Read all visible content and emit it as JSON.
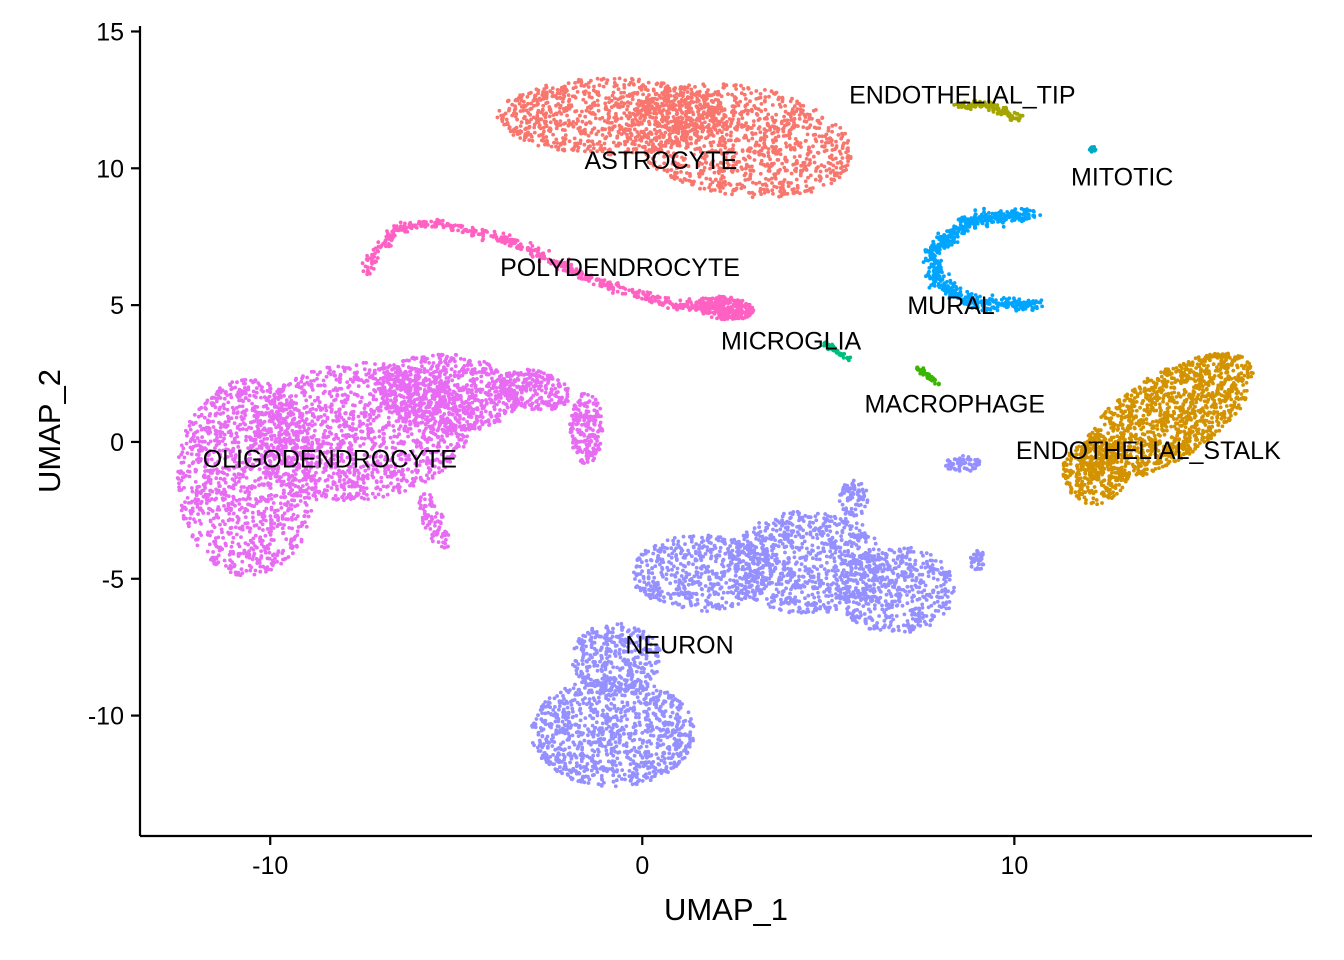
{
  "chart_data": {
    "type": "scatter",
    "xlabel": "UMAP_1",
    "ylabel": "UMAP_2",
    "xlim": [
      -13.5,
      18
    ],
    "ylim": [
      -14.4,
      15.2
    ],
    "xticks": [
      -10,
      0,
      10
    ],
    "xtick_labels": [
      "-10",
      "0",
      "10"
    ],
    "yticks": [
      -10,
      -5,
      0,
      5,
      10,
      15
    ],
    "ytick_labels": [
      "-10",
      "-5",
      "0",
      "5",
      "10",
      "15"
    ],
    "grid": false,
    "legend": "none",
    "clusters": [
      {
        "label": "ASTROCYTE",
        "color": "#F8766D",
        "label_pos": [
          0.5,
          10.3
        ],
        "blobs": [
          {
            "cx": -0.8,
            "cy": 11.9,
            "rx": 3.1,
            "ry": 1.4,
            "rot": 0,
            "n": 900
          },
          {
            "cx": 2.6,
            "cy": 11.0,
            "rx": 3.1,
            "ry": 2.0,
            "rot": -15,
            "n": 1100
          }
        ],
        "curves": []
      },
      {
        "label": "ENDOTHELIAL_TIP",
        "color": "#A3A500",
        "label_pos": [
          8.6,
          12.7
        ],
        "blobs": [],
        "curves": [
          {
            "points": [
              [
                8.5,
                12.3
              ],
              [
                9.3,
                12.3
              ],
              [
                10.2,
                11.8
              ]
            ],
            "width": 0.13,
            "n": 120
          }
        ]
      },
      {
        "label": "MITOTIC",
        "color": "#00A9BF",
        "label_pos": [
          12.9,
          9.7
        ],
        "blobs": [
          {
            "cx": 12.1,
            "cy": 10.7,
            "rx": 0.1,
            "ry": 0.1,
            "rot": 0,
            "n": 12
          }
        ],
        "curves": []
      },
      {
        "label": "POLYDENDROCYTE",
        "color": "#FF61C3",
        "label_pos": [
          -0.6,
          6.4
        ],
        "blobs": [
          {
            "cx": 2.2,
            "cy": 4.9,
            "rx": 0.8,
            "ry": 0.42,
            "rot": -10,
            "n": 260
          }
        ],
        "curves": [
          {
            "points": [
              [
                -7.4,
                6.1
              ],
              [
                -7.3,
                6.7
              ],
              [
                -6.6,
                7.8
              ],
              [
                -5.6,
                8.0
              ],
              [
                -3.6,
                7.4
              ],
              [
                -1.3,
                5.9
              ],
              [
                0.8,
                5.0
              ],
              [
                2.2,
                4.9
              ]
            ],
            "width": 0.14,
            "n": 520
          }
        ]
      },
      {
        "label": "MURAL",
        "color": "#00A5FF",
        "label_pos": [
          8.3,
          5.0
        ],
        "blobs": [],
        "curves": [
          {
            "points": [
              [
                10.5,
                8.3
              ],
              [
                8.8,
                8.1
              ],
              [
                7.8,
                7.0
              ],
              [
                7.9,
                5.9
              ],
              [
                8.8,
                5.1
              ],
              [
                10.6,
                5.0
              ]
            ],
            "width": 0.2,
            "n": 650
          }
        ]
      },
      {
        "label": "MICROGLIA",
        "color": "#00BF7D",
        "label_pos": [
          4.0,
          3.7
        ],
        "blobs": [],
        "curves": [
          {
            "points": [
              [
                4.9,
                3.6
              ],
              [
                5.6,
                3.0
              ]
            ],
            "width": 0.07,
            "n": 50
          }
        ]
      },
      {
        "label": "MACROPHAGE",
        "color": "#39B600",
        "label_pos": [
          8.4,
          1.4
        ],
        "blobs": [],
        "curves": [
          {
            "points": [
              [
                7.4,
                2.7
              ],
              [
                8.0,
                2.1
              ]
            ],
            "width": 0.07,
            "n": 50
          }
        ]
      },
      {
        "label": "OLIGODENDROCYTE",
        "color": "#E76BF3",
        "label_pos": [
          -8.4,
          -0.6
        ],
        "blobs": [
          {
            "cx": -10.6,
            "cy": -1.3,
            "rx": 1.9,
            "ry": 3.6,
            "rot": 0,
            "n": 1200
          },
          {
            "cx": -7.6,
            "cy": 0.4,
            "rx": 3.0,
            "ry": 2.5,
            "rot": 15,
            "n": 1400
          },
          {
            "cx": -5.2,
            "cy": 1.8,
            "rx": 1.9,
            "ry": 1.4,
            "rot": -10,
            "n": 700
          },
          {
            "cx": -2.9,
            "cy": 1.9,
            "rx": 1.0,
            "ry": 0.7,
            "rot": -25,
            "n": 250
          },
          {
            "cx": -1.5,
            "cy": 0.5,
            "rx": 0.45,
            "ry": 1.3,
            "rot": 0,
            "n": 200
          },
          {
            "cx": -5.6,
            "cy": -2.9,
            "rx": 0.3,
            "ry": 1.1,
            "rot": 15,
            "n": 80
          }
        ],
        "curves": []
      },
      {
        "label": "ENDOTHELIAL_STALK",
        "color": "#D39200",
        "label_pos": [
          13.6,
          -0.3
        ],
        "blobs": [
          {
            "cx": 14.1,
            "cy": 0.9,
            "rx": 3.0,
            "ry": 1.4,
            "rot": 45,
            "n": 1300
          },
          {
            "cx": 12.2,
            "cy": -1.0,
            "rx": 0.9,
            "ry": 1.3,
            "rot": 0,
            "n": 300
          }
        ],
        "curves": []
      },
      {
        "label": "NEURON",
        "color": "#9590FF",
        "label_pos": [
          1.0,
          -7.4
        ],
        "blobs": [
          {
            "cx": -0.8,
            "cy": -10.6,
            "rx": 2.2,
            "ry": 2.0,
            "rot": 0,
            "n": 1000
          },
          {
            "cx": -0.7,
            "cy": -7.9,
            "rx": 1.2,
            "ry": 1.3,
            "rot": 0,
            "n": 350
          },
          {
            "cx": 1.6,
            "cy": -4.8,
            "rx": 1.9,
            "ry": 1.4,
            "rot": 0,
            "n": 550
          },
          {
            "cx": 4.5,
            "cy": -4.4,
            "rx": 2.1,
            "ry": 1.9,
            "rot": 0,
            "n": 800
          },
          {
            "cx": 6.8,
            "cy": -5.4,
            "rx": 1.6,
            "ry": 1.6,
            "rot": 0,
            "n": 500
          },
          {
            "cx": 5.7,
            "cy": -2.1,
            "rx": 0.4,
            "ry": 0.7,
            "rot": 0,
            "n": 80
          },
          {
            "cx": 8.6,
            "cy": -0.8,
            "rx": 0.5,
            "ry": 0.3,
            "rot": 0,
            "n": 60
          },
          {
            "cx": 9.0,
            "cy": -4.3,
            "rx": 0.2,
            "ry": 0.4,
            "rot": 0,
            "n": 40
          }
        ],
        "curves": []
      }
    ]
  }
}
